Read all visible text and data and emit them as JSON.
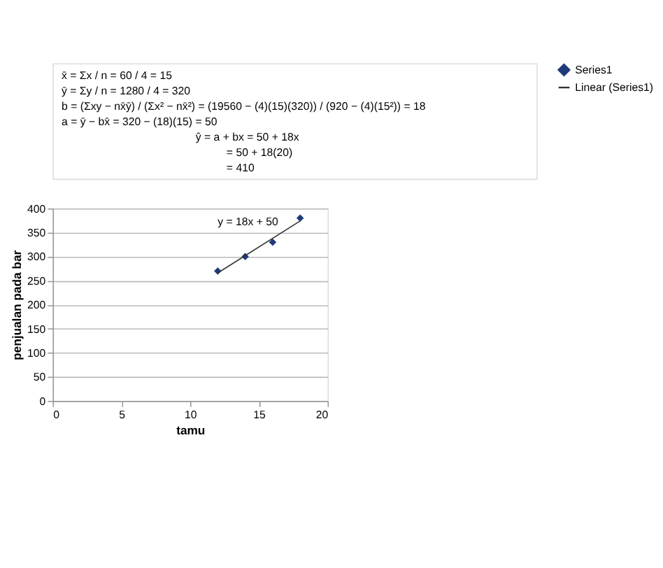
{
  "chart_data": {
    "type": "scatter",
    "xlabel": "tamu",
    "ylabel": "penjualan pada bar",
    "x": [
      12,
      14,
      16,
      18
    ],
    "series": [
      {
        "name": "Series1",
        "color": "#1f3a7a",
        "marker": "diamond",
        "values": [
          270,
          300,
          330,
          380
        ]
      },
      {
        "name": "Linear (Series1)",
        "type": "line",
        "color": "#333333",
        "x": [
          12,
          18
        ],
        "values": [
          266,
          374
        ],
        "line_style": "solid"
      }
    ],
    "xlim": [
      0,
      20
    ],
    "xticks": [
      0,
      5,
      10,
      15,
      20
    ],
    "ylim": [
      0,
      400
    ],
    "yticks": [
      0,
      50,
      100,
      150,
      200,
      250,
      300,
      350,
      400
    ],
    "grid": "y",
    "legend": "right",
    "annotations": [
      "x̄ = Σx / n = 60 / 4 = 15",
      "ȳ = Σy / n = 1280 / 4 = 320",
      "b = (Σxy − nx̄ȳ) / (Σx² − nx̄²) = (19560 − (4)(15)(320)) / (920 − (4)(15²)) = 18",
      "a = ȳ − bx̄ = 320 − (18)(15) = 50",
      "ŷ = a + bx = 50 + 18x",
      "= 50 + 18(20)",
      "= 410",
      "y = 18x + 50"
    ]
  }
}
